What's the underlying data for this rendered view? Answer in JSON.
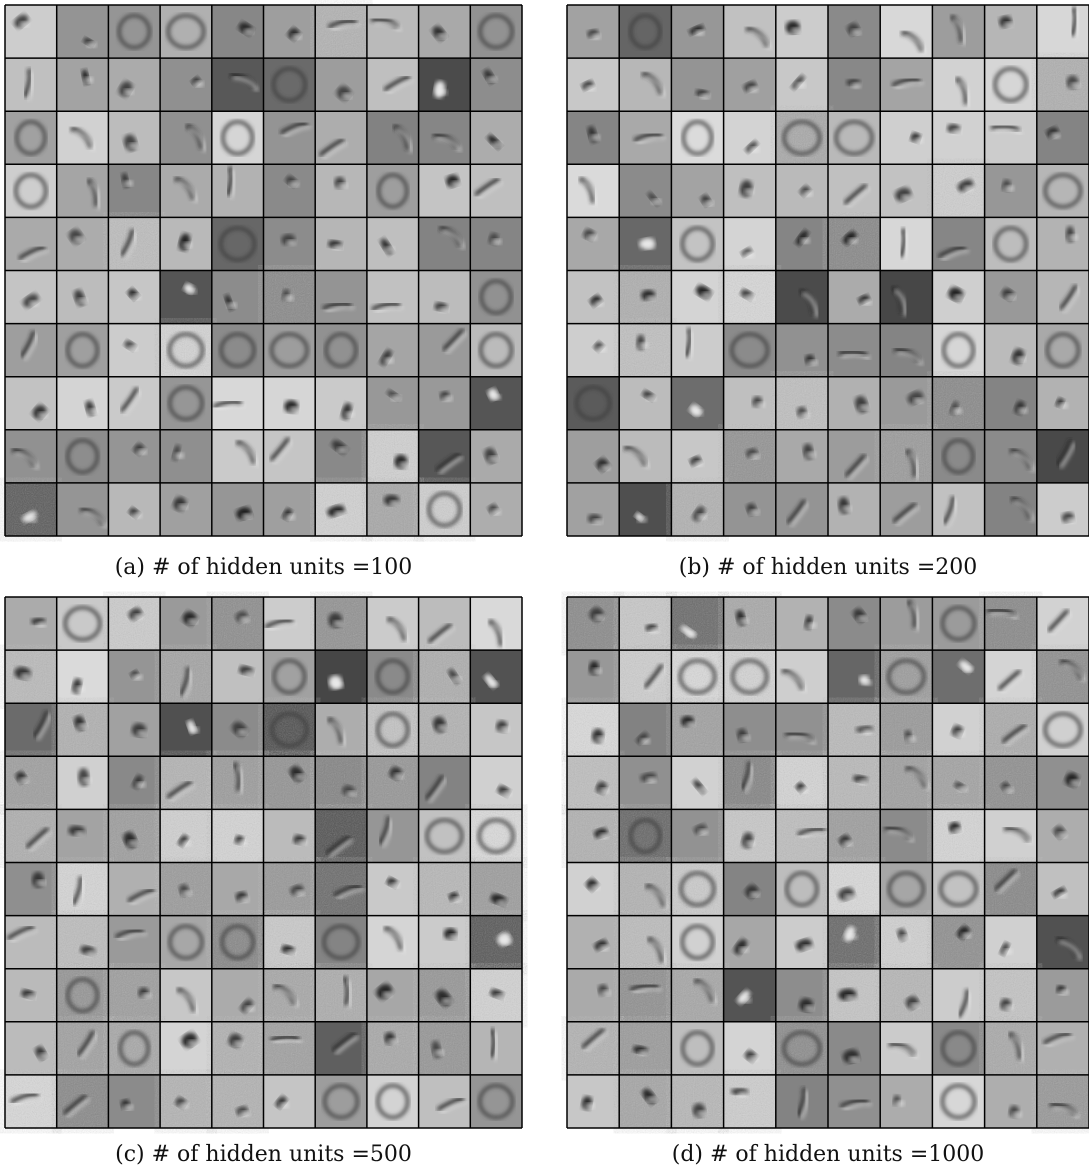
{
  "figures": [
    {
      "caption": "(a) # of hidden units =100"
    },
    {
      "caption": "(b) # of hidden units =200"
    },
    {
      "caption": "(c) # of hidden units =500"
    },
    {
      "caption": "(d) # of hidden units =1000"
    }
  ]
}
